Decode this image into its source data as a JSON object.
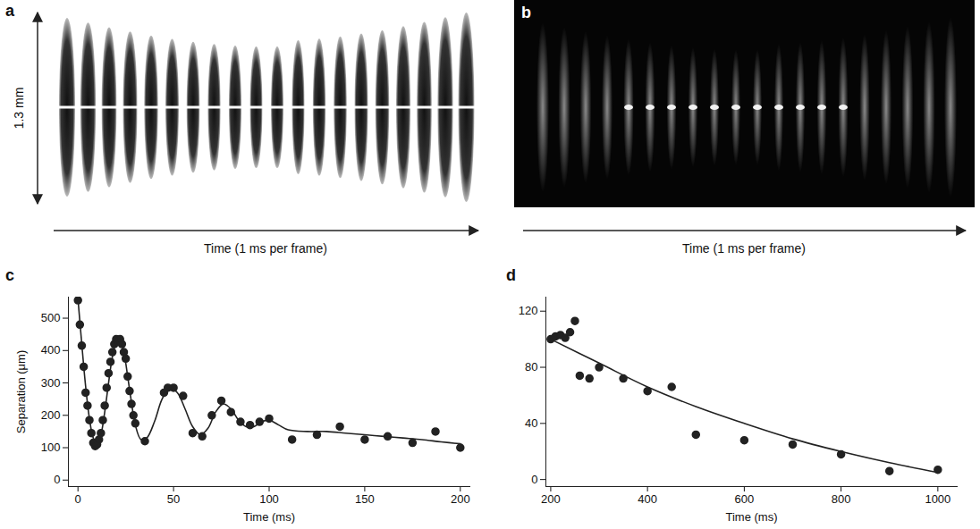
{
  "images": [
    {
      "label": "a",
      "scale_label": "1.3 mm",
      "xlabel": "Time (1 ms per frame)"
    },
    {
      "label": "b",
      "xlabel": "Time (1 ms per frame)"
    }
  ],
  "chart_data": [
    {
      "type": "scatter",
      "label": "c",
      "ylabel": "Separation (μm)",
      "xlabel": "Time (ms)",
      "xlim": [
        -5,
        205
      ],
      "ylim": [
        -20,
        565
      ],
      "xticks": [
        0,
        50,
        100,
        150,
        200
      ],
      "yticks": [
        0,
        100,
        200,
        300,
        400,
        500
      ],
      "series": [
        {
          "type": "scatter",
          "marker": "circle",
          "color": "#222222",
          "x": [
            0,
            1,
            2,
            3,
            4,
            5,
            6,
            7,
            8,
            9,
            10,
            11,
            12,
            13,
            14,
            15,
            16,
            17,
            18,
            19,
            20,
            21,
            22,
            23,
            24,
            25,
            26,
            27,
            28,
            29,
            30,
            35,
            45,
            47,
            50,
            55,
            60,
            65,
            70,
            75,
            80,
            85,
            90,
            95,
            100,
            112,
            125,
            137,
            150,
            162,
            175,
            187,
            200
          ],
          "values": [
            555,
            480,
            415,
            350,
            270,
            230,
            185,
            145,
            115,
            105,
            110,
            125,
            145,
            185,
            230,
            285,
            330,
            365,
            395,
            420,
            435,
            430,
            435,
            420,
            395,
            375,
            320,
            275,
            235,
            200,
            175,
            120,
            270,
            285,
            285,
            260,
            145,
            135,
            200,
            245,
            210,
            180,
            170,
            180,
            190,
            125,
            140,
            165,
            125,
            135,
            115,
            150,
            100
          ]
        },
        {
          "type": "line",
          "line_style": "solid",
          "color": "#222222",
          "x": [
            0,
            2,
            4,
            6,
            8,
            10,
            12,
            14,
            16,
            18,
            20,
            22,
            24,
            26,
            28,
            30,
            33,
            36,
            40,
            44,
            48,
            52,
            56,
            60,
            64,
            68,
            72,
            76,
            80,
            84,
            88,
            92,
            96,
            100,
            105,
            110,
            120,
            130,
            140,
            150,
            160,
            170,
            180,
            190,
            200
          ],
          "values": [
            560,
            420,
            290,
            190,
            130,
            110,
            140,
            210,
            300,
            380,
            425,
            430,
            395,
            320,
            240,
            170,
            125,
            130,
            180,
            250,
            285,
            270,
            220,
            165,
            140,
            160,
            210,
            235,
            220,
            185,
            165,
            165,
            180,
            185,
            170,
            155,
            150,
            150,
            145,
            140,
            135,
            130,
            125,
            118,
            112
          ]
        }
      ]
    },
    {
      "type": "scatter",
      "label": "d",
      "xlabel": "Time (ms)",
      "xlim": [
        190,
        1040
      ],
      "ylim": [
        -5,
        130
      ],
      "xticks": [
        200,
        400,
        600,
        800,
        1000
      ],
      "yticks": [
        0,
        40,
        80,
        120
      ],
      "series": [
        {
          "type": "scatter",
          "marker": "circle",
          "color": "#222222",
          "x": [
            200,
            210,
            220,
            230,
            240,
            250,
            260,
            280,
            300,
            350,
            400,
            450,
            500,
            600,
            700,
            800,
            900,
            1000
          ],
          "values": [
            100,
            102,
            103,
            101,
            105,
            113,
            74,
            72,
            80,
            72,
            63,
            66,
            32,
            28,
            25,
            18,
            6,
            7
          ]
        },
        {
          "type": "line",
          "line_style": "solid",
          "color": "#222222",
          "x": [
            200,
            300,
            400,
            500,
            600,
            700,
            800,
            900,
            1000
          ],
          "values": [
            100,
            83,
            66,
            52,
            40,
            29,
            20,
            12,
            5
          ]
        }
      ]
    }
  ]
}
